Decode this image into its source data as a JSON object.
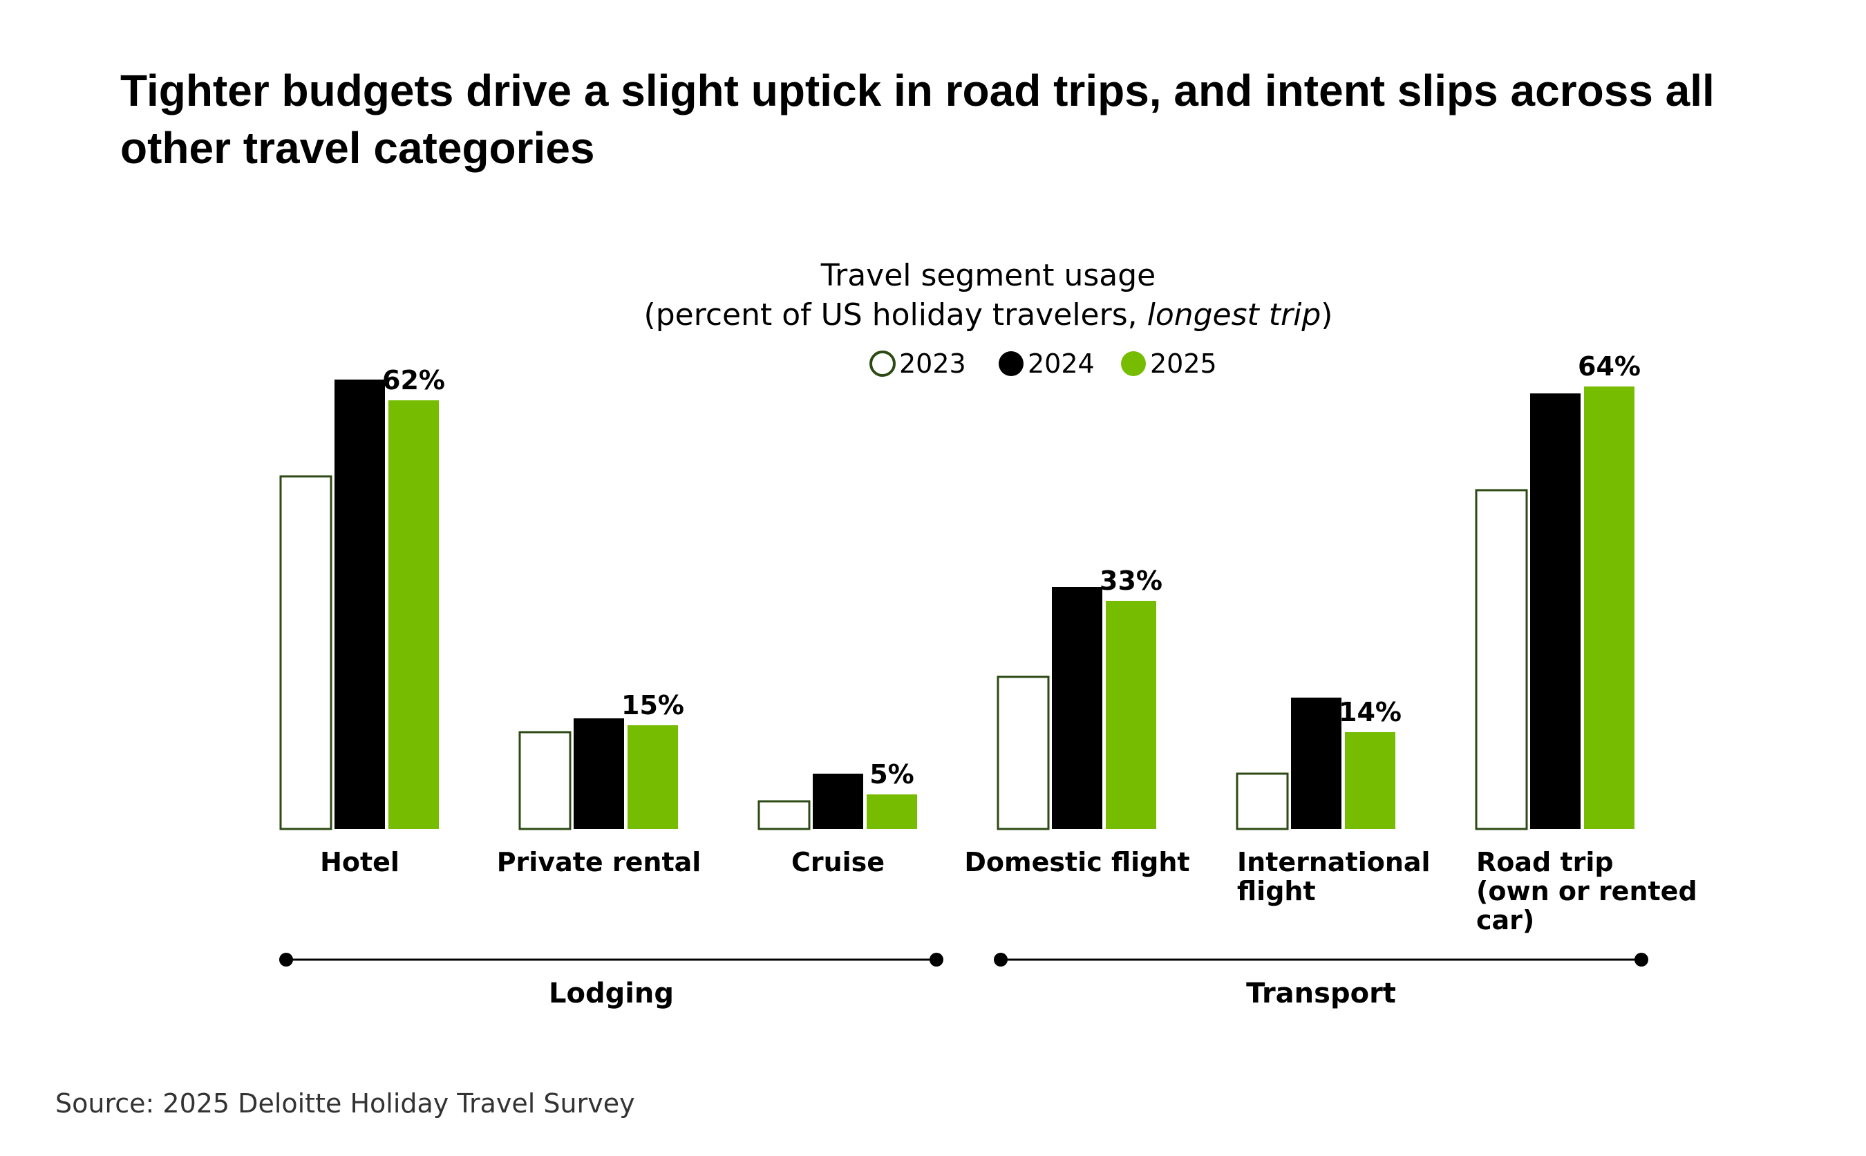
{
  "title_line1": "Tighter budgets drive a slight uptick in road trips, and intent slips across all",
  "title_line2": "other travel categories",
  "source": "Source: 2025 Deloitte Holiday Travel Survey",
  "colors": {
    "y2023_fill": "#ffffff",
    "y2023_stroke": "#2d4a14",
    "y2024": "#000000",
    "y2025": "#76bc00"
  },
  "chart_data": {
    "type": "bar",
    "title": "Travel segment usage",
    "subtitle_prefix": "(percent of US holiday travelers, ",
    "subtitle_italic": "longest trip",
    "subtitle_suffix": ")",
    "ylim": [
      0,
      70
    ],
    "legend": [
      "2023",
      "2024",
      "2025"
    ],
    "categories": [
      [
        "Hotel"
      ],
      [
        "Private rental"
      ],
      [
        "Cruise"
      ],
      [
        "Domestic flight"
      ],
      [
        "International",
        "flight"
      ],
      [
        "Road trip",
        "(own or rented",
        "car)"
      ]
    ],
    "series": [
      {
        "name": "2023",
        "values": [
          51,
          14,
          4,
          22,
          8,
          49
        ]
      },
      {
        "name": "2024",
        "values": [
          65,
          16,
          8,
          35,
          19,
          63
        ]
      },
      {
        "name": "2025",
        "values": [
          62,
          15,
          5,
          33,
          14,
          64
        ]
      }
    ],
    "data_labels": [
      "62%",
      "15%",
      "5%",
      "33%",
      "14%",
      "64%"
    ],
    "groups": [
      {
        "label": "Lodging",
        "from": 0,
        "to": 2
      },
      {
        "label": "Transport",
        "from": 3,
        "to": 5
      }
    ]
  }
}
